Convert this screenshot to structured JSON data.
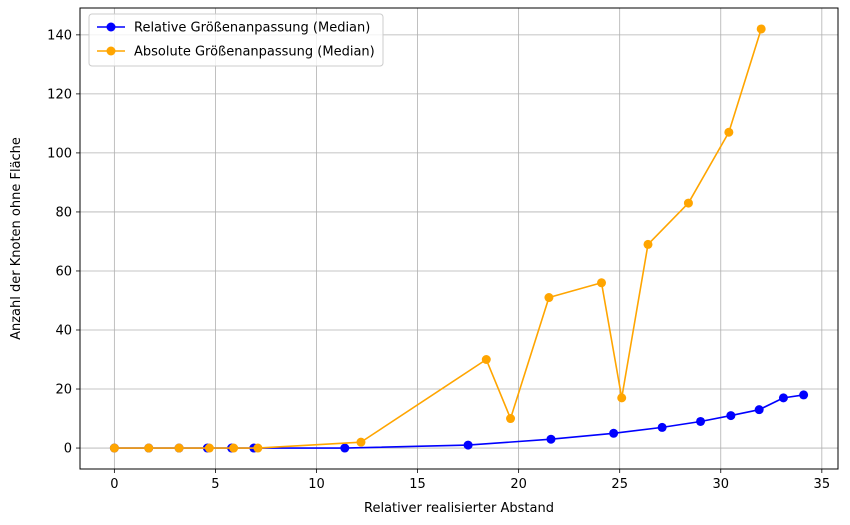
{
  "chart_data": {
    "type": "line",
    "title": "",
    "xlabel": "Relativer realisierter Abstand",
    "ylabel": "Anzahl der Knoten ohne Fläche",
    "xlim": [
      -1.7,
      35.8
    ],
    "ylim": [
      -7.1,
      149.1
    ],
    "xticks": [
      0,
      5,
      10,
      15,
      20,
      25,
      30,
      35
    ],
    "yticks": [
      0,
      20,
      40,
      60,
      80,
      100,
      120,
      140
    ],
    "grid": true,
    "legend_position": "upper-left",
    "series": [
      {
        "name": "Relative Größenanpassung (Median)",
        "color": "#0000ff",
        "x": [
          0,
          1.7,
          3.2,
          4.6,
          5.8,
          6.9,
          11.4,
          17.5,
          21.6,
          24.7,
          27.1,
          29.0,
          30.5,
          31.9,
          33.1,
          34.1
        ],
        "y": [
          0,
          0,
          0,
          0,
          0,
          0,
          0,
          1,
          3,
          5,
          7,
          9,
          11,
          13,
          17,
          18
        ]
      },
      {
        "name": "Absolute Größenanpassung (Median)",
        "color": "#ffa500",
        "x": [
          0,
          1.7,
          3.2,
          4.7,
          5.9,
          7.1,
          12.2,
          18.4,
          19.6,
          21.5,
          24.1,
          25.1,
          26.4,
          28.4,
          30.4,
          32.0
        ],
        "y": [
          0,
          0,
          0,
          0,
          0,
          0,
          2,
          30,
          10,
          51,
          56,
          17,
          69,
          83,
          107,
          142
        ]
      }
    ]
  }
}
